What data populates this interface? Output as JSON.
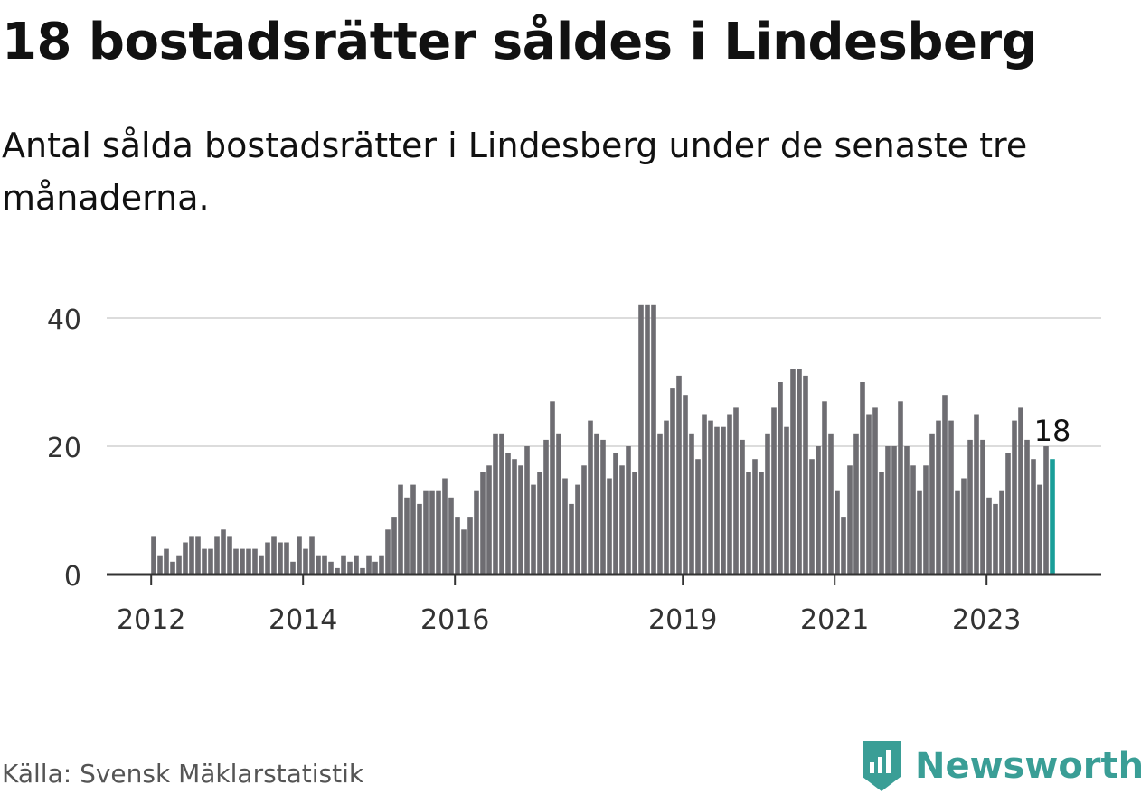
{
  "chart_data": {
    "type": "bar",
    "title": "18 bostadsrätter såldes i Lindesberg",
    "subtitle": "Antal sålda bostadsrätter i Lindesberg under de senaste tre månaderna.",
    "x_start": "2012-01",
    "tick_years": [
      "2012",
      "2014",
      "2016",
      "2019",
      "2021",
      "2023"
    ],
    "y_ticks": [
      0,
      20,
      40
    ],
    "ylim": [
      0,
      44
    ],
    "grid": true,
    "bar_color": "#6e6d72",
    "highlight_color": "#1a9e99",
    "last_label": "18",
    "values": [
      6,
      3,
      4,
      2,
      3,
      5,
      6,
      6,
      4,
      4,
      6,
      7,
      6,
      4,
      4,
      4,
      4,
      3,
      5,
      6,
      5,
      5,
      2,
      6,
      4,
      6,
      3,
      3,
      2,
      1,
      3,
      2,
      3,
      1,
      3,
      2,
      3,
      7,
      9,
      14,
      12,
      14,
      11,
      13,
      13,
      13,
      15,
      12,
      9,
      7,
      9,
      13,
      16,
      17,
      22,
      22,
      19,
      18,
      17,
      20,
      14,
      16,
      21,
      27,
      22,
      15,
      11,
      14,
      17,
      24,
      22,
      21,
      15,
      19,
      17,
      20,
      16,
      42,
      42,
      42,
      22,
      24,
      29,
      31,
      28,
      22,
      18,
      25,
      24,
      23,
      23,
      25,
      26,
      21,
      16,
      18,
      16,
      22,
      26,
      30,
      23,
      32,
      32,
      31,
      18,
      20,
      27,
      22,
      13,
      9,
      17,
      22,
      30,
      25,
      26,
      16,
      20,
      20,
      27,
      20,
      17,
      13,
      17,
      22,
      24,
      28,
      24,
      13,
      15,
      21,
      25,
      21,
      12,
      11,
      13,
      19,
      24,
      26,
      21,
      18,
      14,
      20,
      18
    ]
  },
  "source": "Källa: Svensk Mäklarstatistik",
  "brand": {
    "name": "Newsworthy",
    "logo_icon": "bar-chart-badge-icon",
    "color": "#3a9e96"
  }
}
